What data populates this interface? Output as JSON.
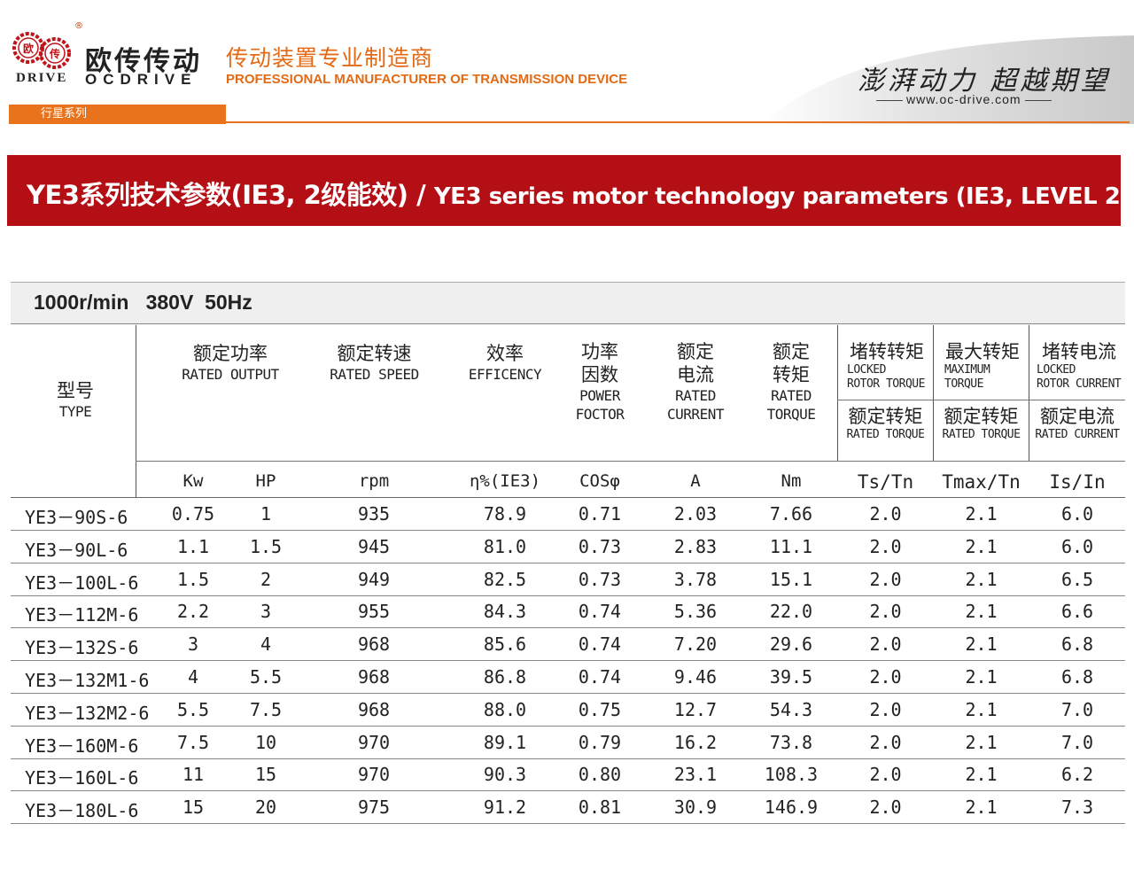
{
  "header": {
    "brand_cn": "欧传传动",
    "brand_en": "OCDRIVE",
    "brand_drive": "DRIVE",
    "registered": "®",
    "logo_chars": [
      "欧",
      "传"
    ],
    "tagline_cn": "传动装置专业制造商",
    "tagline_en": "PROFESSIONAL MANUFACTURER OF TRANSMISSION DEVICE",
    "slogan": "澎湃动力 超越期望",
    "website": "www.oc-drive.com",
    "series_tab": "行星系列",
    "accent_color": "#e9731c"
  },
  "banner": {
    "title_cn": "YE3系列技术参数(IE3, 2级能效) / ",
    "title_en": "YE3 series motor technology parameters (IE3, LEVEL 2)",
    "color": "#b50f16"
  },
  "table": {
    "spec": "1000r/min   380V  50Hz",
    "headers": {
      "type_cn": "型号",
      "type_en": "TYPE",
      "output_cn": "额定功率",
      "output_en": "RATED OUTPUT",
      "speed_cn": "额定转速",
      "speed_en": "RATED SPEED",
      "eff_cn": "效率",
      "eff_en": "EFFICENCY",
      "pf_cn1": "功率",
      "pf_cn2": "因数",
      "pf_en1": "POWER",
      "pf_en2": "FOCTOR",
      "cur_cn1": "额定",
      "cur_cn2": "电流",
      "cur_en1": "RATED",
      "cur_en2": "CURRENT",
      "tq_cn1": "额定",
      "tq_cn2": "转矩",
      "tq_en1": "RATED",
      "tq_en2": "TORQUE",
      "lrt_cn": "堵转转矩",
      "lrt_en1": "LOCKED",
      "lrt_en2": "ROTOR TORQUE",
      "lrt_sub_cn": "额定转矩",
      "lrt_sub_en": "RATED TORQUE",
      "max_cn": "最大转矩",
      "max_en1": "MAXIMUM",
      "max_en2": "TORQUE",
      "max_sub_cn": "额定转矩",
      "max_sub_en": "RATED TORQUE",
      "lrc_cn": "堵转电流",
      "lrc_en1": "LOCKED",
      "lrc_en2": "ROTOR CURRENT",
      "lrc_sub_cn": "额定电流",
      "lrc_sub_en": "RATED CURRENT"
    },
    "units": [
      "Kw",
      "HP",
      "rpm",
      "η%(IE3)",
      "COSφ",
      "A",
      "Nm",
      "Ts/Tn",
      "Tmax/Tn",
      "Is/In"
    ],
    "rows": [
      [
        "YE3－90S-6",
        "0.75",
        "1",
        "935",
        "78.9",
        "0.71",
        "2.03",
        "7.66",
        "2.0",
        "2.1",
        "6.0"
      ],
      [
        "YE3－90L-6",
        "1.1",
        "1.5",
        "945",
        "81.0",
        "0.73",
        "2.83",
        "11.1",
        "2.0",
        "2.1",
        "6.0"
      ],
      [
        "YE3－100L-6",
        "1.5",
        "2",
        "949",
        "82.5",
        "0.73",
        "3.78",
        "15.1",
        "2.0",
        "2.1",
        "6.5"
      ],
      [
        "YE3－112M-6",
        "2.2",
        "3",
        "955",
        "84.3",
        "0.74",
        "5.36",
        "22.0",
        "2.0",
        "2.1",
        "6.6"
      ],
      [
        "YE3－132S-6",
        "3",
        "4",
        "968",
        "85.6",
        "0.74",
        "7.20",
        "29.6",
        "2.0",
        "2.1",
        "6.8"
      ],
      [
        "YE3－132M1-6",
        "4",
        "5.5",
        "968",
        "86.8",
        "0.74",
        "9.46",
        "39.5",
        "2.0",
        "2.1",
        "6.8"
      ],
      [
        "YE3－132M2-6",
        "5.5",
        "7.5",
        "968",
        "88.0",
        "0.75",
        "12.7",
        "54.3",
        "2.0",
        "2.1",
        "7.0"
      ],
      [
        "YE3－160M-6",
        "7.5",
        "10",
        "970",
        "89.1",
        "0.79",
        "16.2",
        "73.8",
        "2.0",
        "2.1",
        "7.0"
      ],
      [
        "YE3－160L-6",
        "11",
        "15",
        "970",
        "90.3",
        "0.80",
        "23.1",
        "108.3",
        "2.0",
        "2.1",
        "6.2"
      ],
      [
        "YE3－180L-6",
        "15",
        "20",
        "975",
        "91.2",
        "0.81",
        "30.9",
        "146.9",
        "2.0",
        "2.1",
        "7.3"
      ]
    ]
  }
}
